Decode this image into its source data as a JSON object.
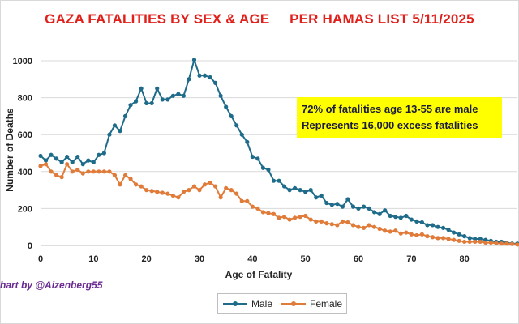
{
  "chart_data": {
    "type": "line",
    "title": "GAZA FATALITIES BY SEX & AGE     PER HAMAS LIST 5/11/2025",
    "xlabel": "Age of Fatality",
    "ylabel": "Number of Deaths",
    "xlim": [
      0,
      90
    ],
    "ylim": [
      0,
      1000
    ],
    "x_ticks": [
      0,
      10,
      20,
      30,
      40,
      50,
      60,
      70,
      80
    ],
    "y_ticks": [
      0,
      200,
      400,
      600,
      800,
      1000
    ],
    "grid": "horizontal",
    "legend_position": "bottom",
    "annotation": [
      "72% of fatalities age 13-55 are male",
      "Represents 16,000 excess fatalities"
    ],
    "credit": "hart by @Aizenberg55",
    "x": [
      0,
      1,
      2,
      3,
      4,
      5,
      6,
      7,
      8,
      9,
      10,
      11,
      12,
      13,
      14,
      15,
      16,
      17,
      18,
      19,
      20,
      21,
      22,
      23,
      24,
      25,
      26,
      27,
      28,
      29,
      30,
      31,
      32,
      33,
      34,
      35,
      36,
      37,
      38,
      39,
      40,
      41,
      42,
      43,
      44,
      45,
      46,
      47,
      48,
      49,
      50,
      51,
      52,
      53,
      54,
      55,
      56,
      57,
      58,
      59,
      60,
      61,
      62,
      63,
      64,
      65,
      66,
      67,
      68,
      69,
      70,
      71,
      72,
      73,
      74,
      75,
      76,
      77,
      78,
      79,
      80,
      81,
      82,
      83,
      84,
      85,
      86,
      87,
      88,
      89,
      90
    ],
    "series": [
      {
        "name": "Male",
        "color": "#1f6b8a",
        "values": [
          485,
          460,
          490,
          470,
          450,
          480,
          450,
          480,
          440,
          460,
          450,
          490,
          500,
          600,
          650,
          620,
          700,
          760,
          780,
          850,
          770,
          770,
          850,
          790,
          790,
          810,
          820,
          810,
          900,
          1005,
          920,
          920,
          910,
          880,
          810,
          750,
          700,
          650,
          600,
          560,
          480,
          470,
          420,
          410,
          350,
          350,
          320,
          300,
          310,
          300,
          290,
          300,
          260,
          270,
          230,
          220,
          225,
          210,
          250,
          210,
          200,
          210,
          200,
          180,
          170,
          190,
          160,
          155,
          150,
          160,
          140,
          130,
          125,
          110,
          110,
          100,
          95,
          85,
          70,
          60,
          50,
          40,
          35,
          35,
          30,
          25,
          20,
          20,
          15,
          10,
          10
        ]
      },
      {
        "name": "Female",
        "color": "#e07b39",
        "values": [
          430,
          440,
          400,
          380,
          370,
          440,
          400,
          410,
          390,
          400,
          400,
          400,
          400,
          400,
          380,
          330,
          380,
          360,
          330,
          320,
          300,
          295,
          290,
          285,
          280,
          270,
          260,
          290,
          300,
          320,
          300,
          330,
          340,
          320,
          260,
          310,
          300,
          280,
          240,
          240,
          210,
          200,
          180,
          175,
          170,
          150,
          155,
          140,
          150,
          155,
          160,
          140,
          130,
          130,
          120,
          115,
          110,
          130,
          125,
          110,
          100,
          95,
          110,
          100,
          90,
          80,
          75,
          80,
          65,
          70,
          60,
          55,
          60,
          50,
          45,
          40,
          40,
          35,
          30,
          25,
          20,
          20,
          20,
          20,
          15,
          15,
          12,
          10,
          10,
          8,
          5
        ]
      }
    ]
  }
}
